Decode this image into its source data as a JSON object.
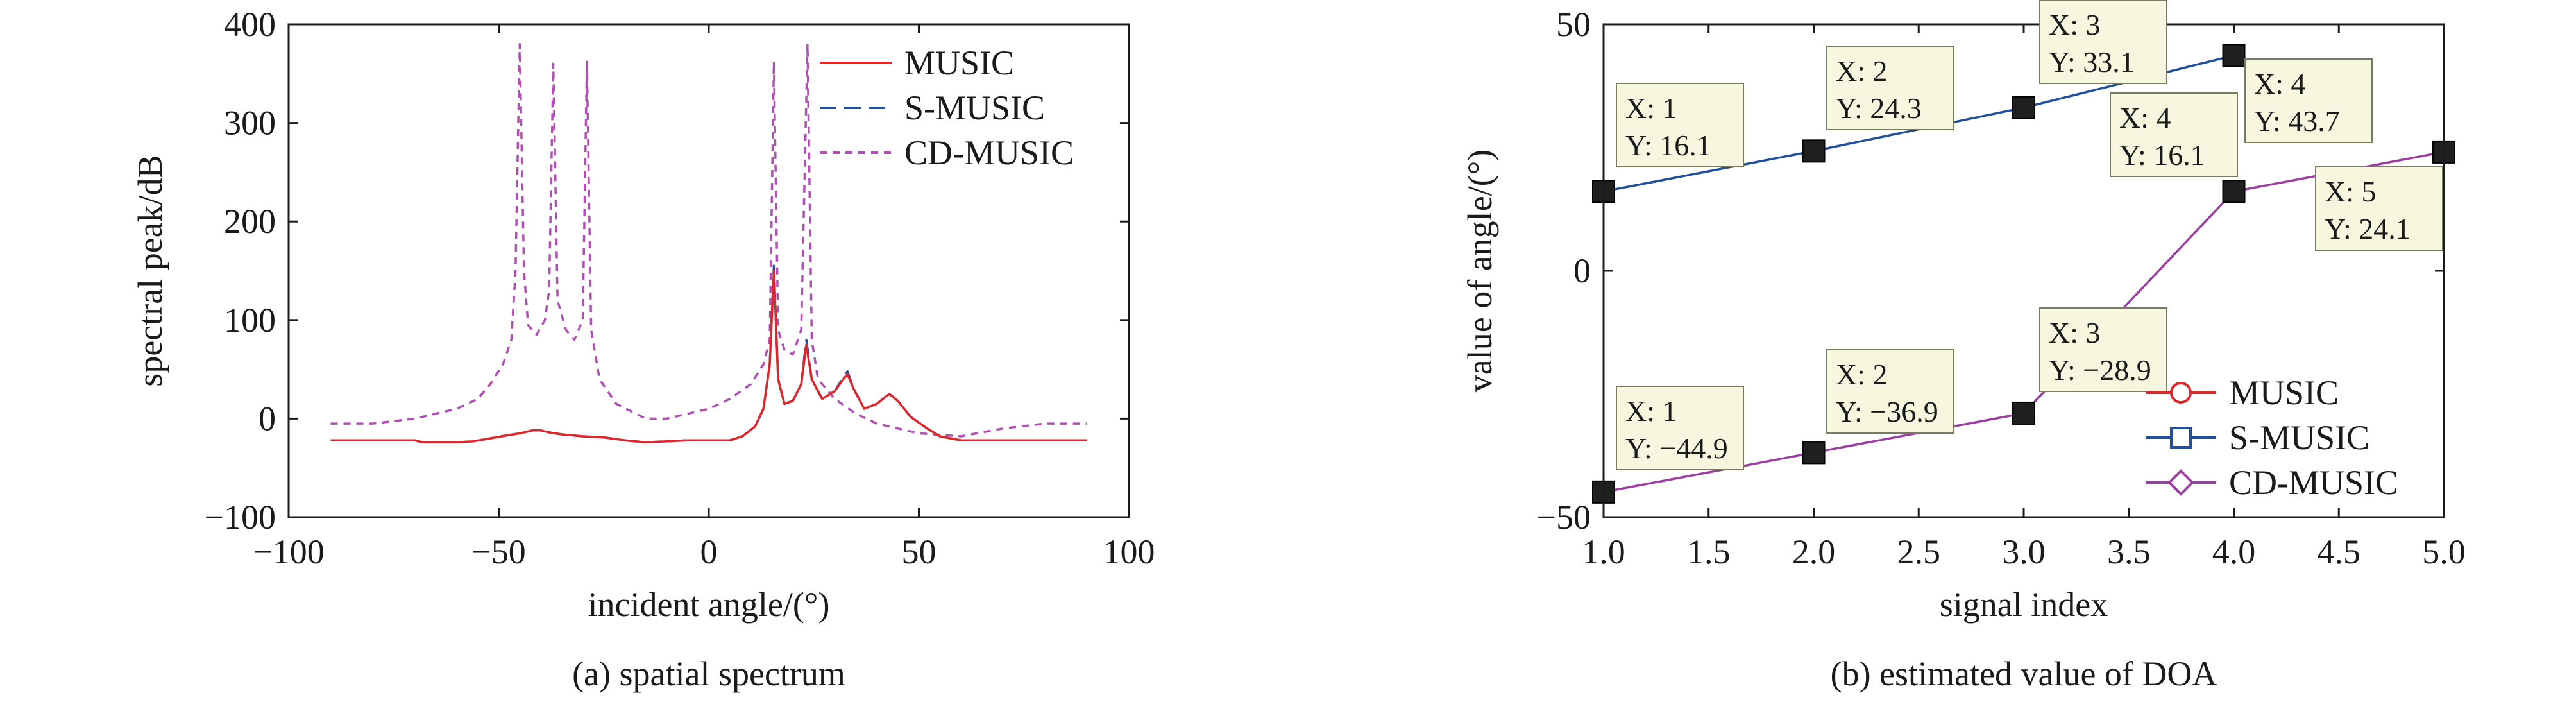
{
  "chart_data": [
    {
      "type": "line",
      "xlabel": "incident angle/(°)",
      "ylabel": "spectral peak/dB",
      "caption": "(a) spatial spectrum",
      "xlim": [
        -100,
        100
      ],
      "ylim": [
        -100,
        400
      ],
      "xticks": [
        -100,
        -50,
        0,
        50,
        100
      ],
      "xtick_labels": [
        "−100",
        "−50",
        "0",
        "50",
        "100"
      ],
      "yticks": [
        -100,
        0,
        100,
        200,
        300,
        400
      ],
      "ytick_labels": [
        "−100",
        "0",
        "100",
        "200",
        "300",
        "400"
      ],
      "legend_position": "top-right",
      "series": [
        {
          "name": "MUSIC",
          "color": "#e0262a",
          "dash": "solid",
          "points": [
            [
              -90,
              -22
            ],
            [
              -70,
              -22
            ],
            [
              -68,
              -24
            ],
            [
              -60,
              -24
            ],
            [
              -56,
              -23
            ],
            [
              -52,
              -20
            ],
            [
              -48,
              -17
            ],
            [
              -45,
              -15
            ],
            [
              -42,
              -12
            ],
            [
              -40,
              -12
            ],
            [
              -38,
              -14
            ],
            [
              -35,
              -16
            ],
            [
              -30,
              -18
            ],
            [
              -25,
              -19
            ],
            [
              -20,
              -22
            ],
            [
              -15,
              -24
            ],
            [
              -10,
              -23
            ],
            [
              -5,
              -22
            ],
            [
              0,
              -22
            ],
            [
              5,
              -22
            ],
            [
              8,
              -18
            ],
            [
              11,
              -8
            ],
            [
              13,
              10
            ],
            [
              14.5,
              55
            ],
            [
              15.5,
              150
            ],
            [
              16.5,
              40
            ],
            [
              18,
              15
            ],
            [
              20,
              18
            ],
            [
              22,
              35
            ],
            [
              23.2,
              75
            ],
            [
              24.5,
              40
            ],
            [
              27,
              20
            ],
            [
              30,
              28
            ],
            [
              32,
              40
            ],
            [
              33,
              45
            ],
            [
              34.5,
              30
            ],
            [
              37,
              10
            ],
            [
              40,
              15
            ],
            [
              42,
              22
            ],
            [
              43,
              25
            ],
            [
              45,
              18
            ],
            [
              48,
              2
            ],
            [
              52,
              -10
            ],
            [
              55,
              -18
            ],
            [
              60,
              -22
            ],
            [
              70,
              -22
            ],
            [
              90,
              -22
            ]
          ]
        },
        {
          "name": "S-MUSIC",
          "color": "#1f4f9e",
          "dash": "long-dash",
          "points": [
            [
              -90,
              -22
            ],
            [
              -70,
              -22
            ],
            [
              -68,
              -24
            ],
            [
              -60,
              -24
            ],
            [
              -56,
              -23
            ],
            [
              -52,
              -20
            ],
            [
              -48,
              -17
            ],
            [
              -45,
              -15
            ],
            [
              -42,
              -12
            ],
            [
              -40,
              -12
            ],
            [
              -38,
              -14
            ],
            [
              -35,
              -16
            ],
            [
              -30,
              -18
            ],
            [
              -25,
              -19
            ],
            [
              -20,
              -22
            ],
            [
              -15,
              -24
            ],
            [
              -10,
              -23
            ],
            [
              -5,
              -22
            ],
            [
              0,
              -22
            ],
            [
              5,
              -22
            ],
            [
              8,
              -18
            ],
            [
              11,
              -8
            ],
            [
              13,
              10
            ],
            [
              14.5,
              55
            ],
            [
              15.5,
              155
            ],
            [
              16.5,
              40
            ],
            [
              18,
              15
            ],
            [
              20,
              18
            ],
            [
              22,
              35
            ],
            [
              23.2,
              80
            ],
            [
              24.5,
              40
            ],
            [
              27,
              20
            ],
            [
              30,
              28
            ],
            [
              32,
              42
            ],
            [
              33,
              48
            ],
            [
              34.5,
              30
            ],
            [
              37,
              10
            ],
            [
              40,
              15
            ],
            [
              42,
              22
            ],
            [
              43,
              25
            ],
            [
              45,
              18
            ],
            [
              48,
              2
            ],
            [
              52,
              -10
            ],
            [
              55,
              -18
            ],
            [
              60,
              -22
            ],
            [
              70,
              -22
            ],
            [
              90,
              -22
            ]
          ]
        },
        {
          "name": "CD-MUSIC",
          "color": "#b04fb4",
          "dash": "short-dash",
          "points": [
            [
              -90,
              -5
            ],
            [
              -80,
              -5
            ],
            [
              -70,
              0
            ],
            [
              -60,
              10
            ],
            [
              -55,
              20
            ],
            [
              -52,
              35
            ],
            [
              -49,
              55
            ],
            [
              -47,
              80
            ],
            [
              -46,
              150
            ],
            [
              -45,
              380
            ],
            [
              -44,
              150
            ],
            [
              -43,
              95
            ],
            [
              -41,
              85
            ],
            [
              -39,
              100
            ],
            [
              -38,
              130
            ],
            [
              -37,
              360
            ],
            [
              -36,
              120
            ],
            [
              -34,
              90
            ],
            [
              -32,
              80
            ],
            [
              -30,
              100
            ],
            [
              -29,
              362
            ],
            [
              -28,
              90
            ],
            [
              -26,
              40
            ],
            [
              -22,
              15
            ],
            [
              -15,
              0
            ],
            [
              -10,
              0
            ],
            [
              -5,
              5
            ],
            [
              0,
              10
            ],
            [
              5,
              20
            ],
            [
              10,
              35
            ],
            [
              13,
              55
            ],
            [
              14.5,
              80
            ],
            [
              15.5,
              362
            ],
            [
              16.5,
              90
            ],
            [
              18,
              70
            ],
            [
              20,
              65
            ],
            [
              22,
              90
            ],
            [
              23.5,
              380
            ],
            [
              24.5,
              80
            ],
            [
              26,
              40
            ],
            [
              30,
              20
            ],
            [
              35,
              5
            ],
            [
              40,
              -5
            ],
            [
              50,
              -15
            ],
            [
              60,
              -18
            ],
            [
              70,
              -10
            ],
            [
              80,
              -5
            ],
            [
              90,
              -5
            ]
          ]
        }
      ]
    },
    {
      "type": "line",
      "xlabel": "signal index",
      "ylabel": "value of angle/(°)",
      "caption": "(b) estimated value of DOA",
      "xlim": [
        1,
        5
      ],
      "ylim": [
        -50,
        50
      ],
      "xticks": [
        1,
        1.5,
        2,
        2.5,
        3,
        3.5,
        4,
        4.5,
        5
      ],
      "xtick_labels": [
        "1.0",
        "1.5",
        "2.0",
        "2.5",
        "3.0",
        "3.5",
        "4.0",
        "4.5",
        "5.0"
      ],
      "yticks": [
        -50,
        0,
        50
      ],
      "ytick_labels": [
        "−50",
        "0",
        "50"
      ],
      "legend_position": "bottom-right",
      "series": [
        {
          "name": "MUSIC",
          "color": "#e0262a",
          "marker": "circle",
          "x": [
            1,
            2,
            3,
            4
          ],
          "y": [
            16.1,
            24.3,
            33.1,
            43.7
          ]
        },
        {
          "name": "S-MUSIC",
          "color": "#1f4f9e",
          "marker": "square",
          "x": [
            1,
            2,
            3,
            4
          ],
          "y": [
            16.1,
            24.3,
            33.1,
            43.7
          ]
        },
        {
          "name": "CD-MUSIC",
          "color": "#9b3fa2",
          "marker": "diamond",
          "x": [
            1,
            2,
            3,
            4,
            5
          ],
          "y": [
            -44.9,
            -36.9,
            -28.9,
            16.1,
            24.1
          ]
        }
      ],
      "datatips": [
        {
          "x_text": "X: 1",
          "y_text": "Y: 16.1"
        },
        {
          "x_text": "X: 2",
          "y_text": "Y: 24.3"
        },
        {
          "x_text": "X: 3",
          "y_text": "Y: 33.1"
        },
        {
          "x_text": "X: 4",
          "y_text": "Y: 16.1"
        },
        {
          "x_text": "X: 4",
          "y_text": "Y: 43.7"
        },
        {
          "x_text": "X: 5",
          "y_text": "Y: 24.1"
        },
        {
          "x_text": "X: 1",
          "y_text": "Y: −44.9"
        },
        {
          "x_text": "X: 2",
          "y_text": "Y: −36.9"
        },
        {
          "x_text": "X: 3",
          "y_text": "Y: −28.9"
        }
      ]
    }
  ]
}
